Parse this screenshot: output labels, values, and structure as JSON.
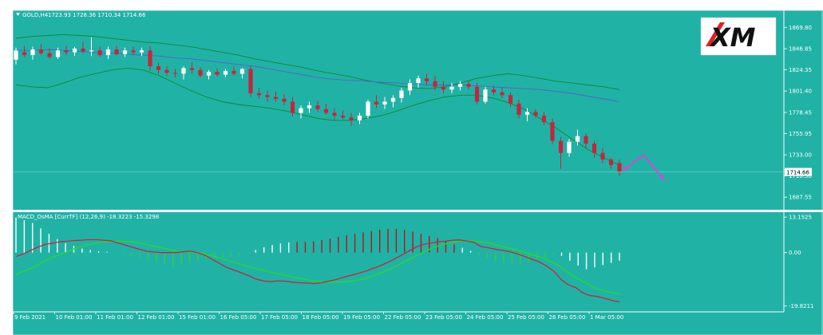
{
  "header": {
    "symbol": "GOLD,H4",
    "ohlc": "1723.93 1728.36 1710.34 1714.66",
    "indicator": "MACD_OsMA [CurrTF] (12,26,9) -18.3223 -15.3298"
  },
  "brand": {
    "logo_text": "XM"
  },
  "colors": {
    "background": "#21b2a6",
    "bull_candle": "#ffffff",
    "bear_candle": "#c8243c",
    "bollinger": "#0b8a2e",
    "ma": "#5a5fc8",
    "macd_line": "#c8243c",
    "signal_line": "#22dd22",
    "arrow": "#c84fd0",
    "osma_hist_up": "#ffffff",
    "osma_hist_down": "#33cc44",
    "osma_hist_peak": "#b01818"
  },
  "chart_data": [
    {
      "type": "candlestick",
      "name": "GOLD,H4",
      "ylim": [
        1674,
        1888
      ],
      "yticks": [
        1869.8,
        1846.85,
        1824.35,
        1801.4,
        1778.45,
        1755.95,
        1733.0,
        1710.5,
        1687.55
      ],
      "current_price": "1714.66",
      "x_labels": [
        "9 Feb 2021",
        "10 Feb 01:00",
        "11 Feb 01:00",
        "12 Feb 01:00",
        "15 Feb 01:00",
        "16 Feb 05:00",
        "17 Feb 05:00",
        "18 Feb 05:00",
        "19 Feb 05:00",
        "22 Feb 05:00",
        "23 Feb 05:00",
        "24 Feb 05:00",
        "25 Feb 05:00",
        "26 Feb 05:00",
        "1 Mar 05:00"
      ],
      "candles": [
        {
          "o": 1835,
          "h": 1848,
          "l": 1830,
          "c": 1845
        },
        {
          "o": 1843,
          "h": 1850,
          "l": 1838,
          "c": 1840
        },
        {
          "o": 1840,
          "h": 1849,
          "l": 1835,
          "c": 1846
        },
        {
          "o": 1846,
          "h": 1852,
          "l": 1840,
          "c": 1842
        },
        {
          "o": 1842,
          "h": 1847,
          "l": 1836,
          "c": 1838
        },
        {
          "o": 1838,
          "h": 1848,
          "l": 1836,
          "c": 1845
        },
        {
          "o": 1845,
          "h": 1850,
          "l": 1840,
          "c": 1843
        },
        {
          "o": 1843,
          "h": 1849,
          "l": 1839,
          "c": 1847
        },
        {
          "o": 1847,
          "h": 1854,
          "l": 1842,
          "c": 1844
        },
        {
          "o": 1844,
          "h": 1859,
          "l": 1839,
          "c": 1845
        },
        {
          "o": 1845,
          "h": 1849,
          "l": 1838,
          "c": 1840
        },
        {
          "o": 1840,
          "h": 1849,
          "l": 1836,
          "c": 1846
        },
        {
          "o": 1846,
          "h": 1850,
          "l": 1840,
          "c": 1841
        },
        {
          "o": 1841,
          "h": 1848,
          "l": 1838,
          "c": 1845
        },
        {
          "o": 1845,
          "h": 1849,
          "l": 1840,
          "c": 1843
        },
        {
          "o": 1843,
          "h": 1848,
          "l": 1839,
          "c": 1845
        },
        {
          "o": 1845,
          "h": 1850,
          "l": 1823,
          "c": 1828
        },
        {
          "o": 1828,
          "h": 1832,
          "l": 1820,
          "c": 1824
        },
        {
          "o": 1824,
          "h": 1828,
          "l": 1818,
          "c": 1821
        },
        {
          "o": 1821,
          "h": 1825,
          "l": 1816,
          "c": 1820
        },
        {
          "o": 1820,
          "h": 1828,
          "l": 1814,
          "c": 1826
        },
        {
          "o": 1826,
          "h": 1832,
          "l": 1820,
          "c": 1824
        },
        {
          "o": 1824,
          "h": 1827,
          "l": 1816,
          "c": 1818
        },
        {
          "o": 1818,
          "h": 1824,
          "l": 1814,
          "c": 1822
        },
        {
          "o": 1822,
          "h": 1826,
          "l": 1817,
          "c": 1819
        },
        {
          "o": 1819,
          "h": 1825,
          "l": 1816,
          "c": 1823
        },
        {
          "o": 1823,
          "h": 1828,
          "l": 1818,
          "c": 1820
        },
        {
          "o": 1820,
          "h": 1826,
          "l": 1815,
          "c": 1825
        },
        {
          "o": 1825,
          "h": 1828,
          "l": 1795,
          "c": 1799
        },
        {
          "o": 1799,
          "h": 1805,
          "l": 1793,
          "c": 1797
        },
        {
          "o": 1797,
          "h": 1802,
          "l": 1790,
          "c": 1795
        },
        {
          "o": 1795,
          "h": 1801,
          "l": 1790,
          "c": 1793
        },
        {
          "o": 1793,
          "h": 1798,
          "l": 1786,
          "c": 1790
        },
        {
          "o": 1790,
          "h": 1795,
          "l": 1774,
          "c": 1778
        },
        {
          "o": 1778,
          "h": 1786,
          "l": 1772,
          "c": 1783
        },
        {
          "o": 1783,
          "h": 1790,
          "l": 1778,
          "c": 1786
        },
        {
          "o": 1786,
          "h": 1791,
          "l": 1779,
          "c": 1782
        },
        {
          "o": 1782,
          "h": 1788,
          "l": 1776,
          "c": 1778
        },
        {
          "o": 1778,
          "h": 1783,
          "l": 1770,
          "c": 1775
        },
        {
          "o": 1775,
          "h": 1781,
          "l": 1771,
          "c": 1773
        },
        {
          "o": 1773,
          "h": 1778,
          "l": 1764,
          "c": 1770
        },
        {
          "o": 1770,
          "h": 1778,
          "l": 1766,
          "c": 1775
        },
        {
          "o": 1775,
          "h": 1792,
          "l": 1772,
          "c": 1790
        },
        {
          "o": 1790,
          "h": 1797,
          "l": 1783,
          "c": 1787
        },
        {
          "o": 1787,
          "h": 1795,
          "l": 1782,
          "c": 1790
        },
        {
          "o": 1790,
          "h": 1797,
          "l": 1784,
          "c": 1794
        },
        {
          "o": 1794,
          "h": 1805,
          "l": 1789,
          "c": 1802
        },
        {
          "o": 1802,
          "h": 1814,
          "l": 1797,
          "c": 1810
        },
        {
          "o": 1810,
          "h": 1818,
          "l": 1805,
          "c": 1815
        },
        {
          "o": 1815,
          "h": 1820,
          "l": 1808,
          "c": 1812
        },
        {
          "o": 1812,
          "h": 1818,
          "l": 1802,
          "c": 1806
        },
        {
          "o": 1806,
          "h": 1812,
          "l": 1799,
          "c": 1803
        },
        {
          "o": 1803,
          "h": 1810,
          "l": 1799,
          "c": 1806
        },
        {
          "o": 1806,
          "h": 1812,
          "l": 1802,
          "c": 1809
        },
        {
          "o": 1809,
          "h": 1813,
          "l": 1803,
          "c": 1806
        },
        {
          "o": 1806,
          "h": 1810,
          "l": 1787,
          "c": 1790
        },
        {
          "o": 1790,
          "h": 1806,
          "l": 1788,
          "c": 1803
        },
        {
          "o": 1803,
          "h": 1807,
          "l": 1797,
          "c": 1800
        },
        {
          "o": 1800,
          "h": 1805,
          "l": 1794,
          "c": 1797
        },
        {
          "o": 1797,
          "h": 1800,
          "l": 1784,
          "c": 1788
        },
        {
          "o": 1788,
          "h": 1792,
          "l": 1772,
          "c": 1776
        },
        {
          "o": 1776,
          "h": 1783,
          "l": 1769,
          "c": 1779
        },
        {
          "o": 1779,
          "h": 1782,
          "l": 1772,
          "c": 1775
        },
        {
          "o": 1775,
          "h": 1779,
          "l": 1765,
          "c": 1768
        },
        {
          "o": 1768,
          "h": 1772,
          "l": 1744,
          "c": 1748
        },
        {
          "o": 1748,
          "h": 1752,
          "l": 1718,
          "c": 1735
        },
        {
          "o": 1735,
          "h": 1750,
          "l": 1731,
          "c": 1747
        },
        {
          "o": 1747,
          "h": 1760,
          "l": 1743,
          "c": 1753
        },
        {
          "o": 1753,
          "h": 1756,
          "l": 1740,
          "c": 1745
        },
        {
          "o": 1745,
          "h": 1748,
          "l": 1730,
          "c": 1735
        },
        {
          "o": 1735,
          "h": 1740,
          "l": 1724,
          "c": 1728
        },
        {
          "o": 1728,
          "h": 1730,
          "l": 1718,
          "c": 1722
        },
        {
          "o": 1724,
          "h": 1728,
          "l": 1710,
          "c": 1715
        }
      ],
      "bollinger_upper": [
        1858,
        1860,
        1861,
        1862,
        1861,
        1860,
        1858,
        1856,
        1854,
        1853,
        1851,
        1849,
        1846,
        1843,
        1840,
        1836,
        1833,
        1830,
        1827,
        1823,
        1820,
        1817,
        1813,
        1810,
        1807,
        1805,
        1804,
        1806,
        1810,
        1815,
        1818,
        1820,
        1818,
        1815,
        1812,
        1810,
        1808,
        1806,
        1803
      ],
      "bollinger_lower": [
        1808,
        1806,
        1805,
        1810,
        1816,
        1820,
        1824,
        1826,
        1824,
        1818,
        1810,
        1802,
        1795,
        1790,
        1787,
        1785,
        1783,
        1780,
        1776,
        1772,
        1770,
        1770,
        1772,
        1775,
        1780,
        1786,
        1791,
        1795,
        1797,
        1797,
        1794,
        1789,
        1782,
        1772,
        1762,
        1750,
        1739,
        1730,
        1722
      ],
      "ma": [
        1845,
        1845,
        1846,
        1845,
        1844,
        1843,
        1842,
        1841,
        1840,
        1839,
        1837,
        1836,
        1834,
        1832,
        1830,
        1828,
        1825,
        1822,
        1819,
        1816,
        1814,
        1813,
        1812,
        1811,
        1810,
        1809,
        1808,
        1808,
        1808,
        1807,
        1806,
        1805,
        1804,
        1803,
        1801,
        1799,
        1796,
        1793,
        1790
      ],
      "forecast_arrow": [
        1716,
        1733,
        1706
      ]
    },
    {
      "type": "histogram+line",
      "name": "MACD_OsMA [CurrTF] (12,26,9)",
      "ylim": [
        -22,
        15
      ],
      "yticks": [
        13.1525,
        0.0,
        -19.8211
      ],
      "macd": [
        -1.5,
        -0.5,
        0.8,
        2,
        3,
        3.5,
        4,
        4.2,
        4.5,
        4.6,
        4.8,
        4.8,
        4.6,
        4.4,
        3.6,
        2.8,
        2,
        1.2,
        0.5,
        0.2,
        0,
        0,
        0,
        0.3,
        0.5,
        0,
        -1,
        -2.5,
        -4,
        -5.5,
        -6.5,
        -7.5,
        -8.5,
        -9.8,
        -10.5,
        -10.8,
        -10.5,
        -10.6,
        -11,
        -11.2,
        -11.3,
        -11.5,
        -11.2,
        -10.6,
        -10,
        -9.2,
        -8.5,
        -7.8,
        -7,
        -6,
        -5,
        -3.8,
        -2.5,
        -1,
        0.5,
        2,
        3,
        3.5,
        4,
        4.2,
        4.6,
        4.7,
        4.3,
        3.8,
        2.2,
        1.8,
        1.2,
        0.8,
        0.3,
        -0.5,
        -1.5,
        -2.5,
        -3.5,
        -5,
        -7,
        -10,
        -12,
        -13,
        -15,
        -16,
        -16.3,
        -17,
        -17.8,
        -18.3
      ],
      "signal": [
        -8,
        -7,
        -6,
        -4.5,
        -3,
        -1.8,
        -0.8,
        0.2,
        1.4,
        2.3,
        3,
        3.6,
        3.9,
        4.1,
        4.2,
        4.2,
        4,
        3.6,
        3,
        2.4,
        1.8,
        1.2,
        0.6,
        0.3,
        0.2,
        0,
        -0.5,
        -1.2,
        -2,
        -2.8,
        -3.6,
        -4.4,
        -5.2,
        -6,
        -6.6,
        -7.2,
        -7.8,
        -8.4,
        -9,
        -9.5,
        -10.1,
        -10.6,
        -10.8,
        -11,
        -11,
        -10.9,
        -10.6,
        -10.2,
        -9.6,
        -8.8,
        -7.8,
        -6.6,
        -5.4,
        -4,
        -2.6,
        -1.2,
        0.2,
        1.4,
        2.4,
        3.2,
        3.8,
        4.2,
        4.4,
        4.3,
        4,
        3.6,
        2.9,
        2.2,
        1.5,
        0.8,
        0.1,
        -0.8,
        -1.6,
        -2.6,
        -3.8,
        -5.5,
        -7.5,
        -9.3,
        -10.8,
        -12.2,
        -13.5,
        -14.3,
        -14.9,
        -15.3
      ],
      "osma": [
        13,
        12,
        11,
        9,
        7,
        5,
        3.5,
        2.5,
        1.5,
        1,
        0.5,
        0.3,
        0,
        -0.5,
        -1.2,
        -1.8,
        -2.6,
        -3.3,
        -4.2,
        -5.3,
        -4.5,
        -3.5,
        -2.8,
        -2.3,
        -2,
        -1.8,
        -1.4,
        -1,
        -0.3,
        1,
        2,
        2.8,
        3.4,
        3.8,
        4,
        4,
        4.2,
        4.6,
        5.2,
        5.8,
        6.5,
        7,
        7.5,
        8,
        8.5,
        8.8,
        8.8,
        8.4,
        7.8,
        7,
        6.2,
        5.4,
        4.2,
        3,
        1.8,
        0.6,
        -0.8,
        -2,
        -3,
        -3.6,
        -4,
        -4.2,
        -3.8,
        -2.6,
        -1.8,
        -0.8,
        -1.2,
        -3,
        -4.8,
        -6.2,
        -5.5,
        -4.6,
        -3.8,
        -3
      ]
    }
  ]
}
